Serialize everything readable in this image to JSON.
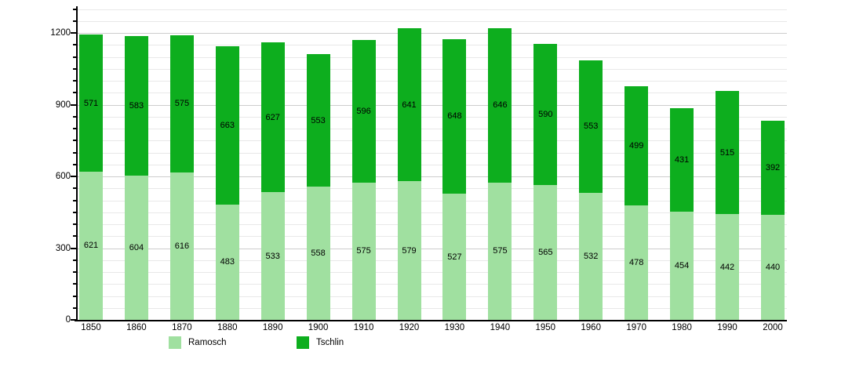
{
  "chart_data": {
    "type": "bar",
    "stacked": true,
    "title": "",
    "xlabel": "",
    "ylabel": "",
    "categories": [
      "1850",
      "1860",
      "1870",
      "1880",
      "1890",
      "1900",
      "1910",
      "1920",
      "1930",
      "1940",
      "1950",
      "1960",
      "1970",
      "1980",
      "1990",
      "2000"
    ],
    "series": [
      {
        "name": "Ramosch",
        "color": "#A0E0A0",
        "values": [
          621,
          604,
          616,
          483,
          533,
          558,
          575,
          579,
          527,
          575,
          565,
          532,
          478,
          454,
          442,
          440
        ]
      },
      {
        "name": "Tschlin",
        "color": "#0DAE1E",
        "values": [
          571,
          583,
          575,
          663,
          627,
          553,
          596,
          641,
          648,
          646,
          590,
          553,
          499,
          431,
          515,
          392
        ]
      }
    ],
    "ylim": [
      0,
      1300
    ],
    "y_major_ticks": [
      0,
      300,
      600,
      900,
      1200
    ],
    "y_minor_step": 50,
    "grid": true,
    "bar_value_labels": true,
    "legend_position": "bottom"
  },
  "y_axis": {
    "labels": [
      "0",
      "300",
      "600",
      "900",
      "1200"
    ]
  },
  "legend": {
    "items": [
      {
        "label": "Ramosch",
        "color": "#A0E0A0"
      },
      {
        "label": "Tschlin",
        "color": "#0DAE1E"
      }
    ]
  }
}
